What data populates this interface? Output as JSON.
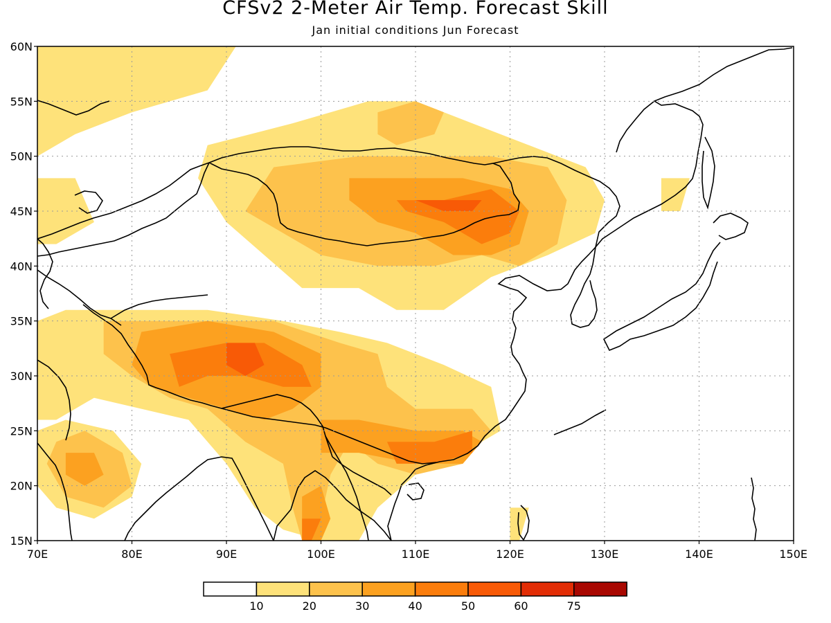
{
  "title": "CFSv2 2-Meter Air Temp. Forecast Skill",
  "subtitle": "Jan initial conditions  Jun Forecast",
  "axes": {
    "lat_labels": [
      "15N",
      "20N",
      "25N",
      "30N",
      "35N",
      "40N",
      "45N",
      "50N",
      "55N",
      "60N"
    ],
    "lon_labels": [
      "70E",
      "80E",
      "90E",
      "100E",
      "110E",
      "120E",
      "130E",
      "140E",
      "150E"
    ],
    "lat_values": [
      15,
      20,
      25,
      30,
      35,
      40,
      45,
      50,
      55,
      60
    ],
    "lon_values": [
      70,
      80,
      90,
      100,
      110,
      120,
      130,
      140,
      150
    ],
    "lat_range": [
      15,
      60
    ],
    "lon_range": [
      70,
      150
    ],
    "grid": "dotted"
  },
  "legend": {
    "labels": [
      "10",
      "20",
      "30",
      "40",
      "50",
      "60",
      "75"
    ],
    "colors": [
      "#ffffff",
      "#fee27a",
      "#fdc24c",
      "#fca120",
      "#fb7d0c",
      "#f85a06",
      "#e22d05",
      "#a90802"
    ]
  },
  "chart_data": {
    "type": "heatmap",
    "title": "CFSv2 2-Meter Air Temp. Forecast Skill",
    "subtitle": "Jan initial conditions  Jun Forecast",
    "x_range": [
      70,
      150
    ],
    "y_range": [
      15,
      60
    ],
    "levels": [
      10,
      20,
      30,
      40,
      50,
      60,
      75
    ],
    "regions": [
      {
        "level": 10,
        "pts": [
          [
            70,
            60
          ],
          [
            91,
            60
          ],
          [
            88,
            56
          ],
          [
            80,
            54
          ],
          [
            74,
            52
          ],
          [
            70,
            50
          ]
        ]
      },
      {
        "level": 10,
        "pts": [
          [
            70,
            48
          ],
          [
            74,
            48
          ],
          [
            76,
            44
          ],
          [
            72,
            42
          ],
          [
            70,
            42
          ]
        ]
      },
      {
        "level": 10,
        "pts": [
          [
            88,
            51
          ],
          [
            97,
            53
          ],
          [
            105,
            55
          ],
          [
            110,
            55
          ],
          [
            116,
            53
          ],
          [
            122,
            51
          ],
          [
            128,
            49
          ],
          [
            130,
            46
          ],
          [
            129,
            43
          ],
          [
            124,
            41
          ],
          [
            118,
            39
          ],
          [
            113,
            36
          ],
          [
            108,
            36
          ],
          [
            104,
            38
          ],
          [
            98,
            38
          ],
          [
            94,
            41
          ],
          [
            90,
            44
          ],
          [
            87,
            48
          ]
        ]
      },
      {
        "level": 10,
        "pts": [
          [
            70,
            35
          ],
          [
            73,
            36
          ],
          [
            80,
            36
          ],
          [
            88,
            36
          ],
          [
            96,
            35
          ],
          [
            102,
            34
          ],
          [
            107,
            33
          ],
          [
            113,
            31
          ],
          [
            118,
            29
          ],
          [
            119,
            25
          ],
          [
            115,
            23
          ],
          [
            110,
            21
          ],
          [
            106,
            18
          ],
          [
            104,
            15
          ],
          [
            100,
            15
          ],
          [
            96,
            16
          ],
          [
            93,
            18
          ],
          [
            90,
            22
          ],
          [
            86,
            26
          ],
          [
            81,
            27
          ],
          [
            76,
            28
          ],
          [
            72,
            26
          ],
          [
            70,
            26
          ]
        ]
      },
      {
        "level": 10,
        "pts": [
          [
            70,
            25
          ],
          [
            73,
            26
          ],
          [
            78,
            25
          ],
          [
            81,
            22
          ],
          [
            80,
            19
          ],
          [
            76,
            17
          ],
          [
            72,
            18
          ],
          [
            70,
            20
          ]
        ]
      },
      {
        "level": 10,
        "pts": [
          [
            136,
            48
          ],
          [
            139,
            48
          ],
          [
            138,
            45
          ],
          [
            136,
            45
          ]
        ]
      },
      {
        "level": 10,
        "pts": [
          [
            120,
            18
          ],
          [
            122,
            18
          ],
          [
            121,
            15
          ],
          [
            120,
            15
          ]
        ]
      },
      {
        "level": 20,
        "pts": [
          [
            95,
            49
          ],
          [
            104,
            50
          ],
          [
            112,
            50
          ],
          [
            118,
            50
          ],
          [
            124,
            49
          ],
          [
            126,
            46
          ],
          [
            125,
            42
          ],
          [
            121,
            40
          ],
          [
            117,
            41
          ],
          [
            112,
            40
          ],
          [
            106,
            40
          ],
          [
            100,
            41
          ],
          [
            96,
            43
          ],
          [
            92,
            45
          ]
        ]
      },
      {
        "level": 20,
        "pts": [
          [
            106,
            54
          ],
          [
            110,
            55
          ],
          [
            113,
            54
          ],
          [
            112,
            52
          ],
          [
            108,
            51
          ],
          [
            106,
            52
          ]
        ]
      },
      {
        "level": 20,
        "pts": [
          [
            77,
            35
          ],
          [
            82,
            35
          ],
          [
            88,
            35
          ],
          [
            95,
            35
          ],
          [
            102,
            33
          ],
          [
            106,
            32
          ],
          [
            107,
            29
          ],
          [
            110,
            27
          ],
          [
            116,
            27
          ],
          [
            118,
            25
          ],
          [
            115,
            22
          ],
          [
            110,
            21
          ],
          [
            106,
            22
          ],
          [
            103,
            24
          ],
          [
            101,
            21
          ],
          [
            100,
            17
          ],
          [
            98,
            15
          ],
          [
            97,
            18
          ],
          [
            96,
            22
          ],
          [
            92,
            24
          ],
          [
            88,
            27
          ],
          [
            84,
            28
          ],
          [
            80,
            30
          ],
          [
            77,
            32
          ]
        ]
      },
      {
        "level": 20,
        "pts": [
          [
            72,
            24
          ],
          [
            75,
            25
          ],
          [
            79,
            23
          ],
          [
            80,
            20
          ],
          [
            77,
            18
          ],
          [
            73,
            19
          ],
          [
            71,
            22
          ]
        ]
      },
      {
        "level": 30,
        "pts": [
          [
            103,
            48
          ],
          [
            110,
            48
          ],
          [
            115,
            48
          ],
          [
            120,
            47
          ],
          [
            122,
            45
          ],
          [
            121,
            42
          ],
          [
            118,
            41
          ],
          [
            114,
            41
          ],
          [
            110,
            43
          ],
          [
            106,
            44
          ],
          [
            103,
            46
          ]
        ]
      },
      {
        "level": 30,
        "pts": [
          [
            81,
            34
          ],
          [
            88,
            35
          ],
          [
            95,
            34
          ],
          [
            100,
            32
          ],
          [
            100,
            29
          ],
          [
            97,
            27
          ],
          [
            94,
            26
          ],
          [
            90,
            27
          ],
          [
            86,
            28
          ],
          [
            82,
            29
          ],
          [
            80,
            31
          ]
        ]
      },
      {
        "level": 30,
        "pts": [
          [
            100,
            26
          ],
          [
            104,
            26
          ],
          [
            110,
            25
          ],
          [
            115,
            25
          ],
          [
            117,
            24
          ],
          [
            115,
            22
          ],
          [
            110,
            22
          ],
          [
            104,
            23
          ],
          [
            100,
            23
          ]
        ]
      },
      {
        "level": 30,
        "pts": [
          [
            98,
            19
          ],
          [
            100,
            20
          ],
          [
            101,
            17
          ],
          [
            100,
            15
          ],
          [
            98,
            15
          ]
        ]
      },
      {
        "level": 30,
        "pts": [
          [
            73,
            23
          ],
          [
            76,
            23
          ],
          [
            77,
            21
          ],
          [
            75,
            20
          ],
          [
            73,
            21
          ]
        ]
      },
      {
        "level": 40,
        "pts": [
          [
            108,
            46
          ],
          [
            113,
            46
          ],
          [
            118,
            47
          ],
          [
            121,
            45
          ],
          [
            120,
            43
          ],
          [
            117,
            42
          ],
          [
            113,
            44
          ],
          [
            109,
            45
          ]
        ]
      },
      {
        "level": 40,
        "pts": [
          [
            84,
            32
          ],
          [
            90,
            33
          ],
          [
            94,
            33
          ],
          [
            98,
            31
          ],
          [
            99,
            29
          ],
          [
            96,
            29
          ],
          [
            92,
            30
          ],
          [
            88,
            30
          ],
          [
            85,
            29
          ]
        ]
      },
      {
        "level": 40,
        "pts": [
          [
            107,
            24
          ],
          [
            112,
            24
          ],
          [
            116,
            25
          ],
          [
            116,
            23
          ],
          [
            112,
            22
          ],
          [
            108,
            22
          ]
        ]
      },
      {
        "level": 40,
        "pts": [
          [
            98,
            17
          ],
          [
            100,
            17
          ],
          [
            99,
            15
          ],
          [
            98,
            15
          ]
        ]
      },
      {
        "level": 50,
        "pts": [
          [
            110,
            46
          ],
          [
            114,
            46
          ],
          [
            117,
            46
          ],
          [
            116,
            45
          ],
          [
            113,
            45
          ]
        ]
      },
      {
        "level": 50,
        "pts": [
          [
            90,
            33
          ],
          [
            93,
            33
          ],
          [
            94,
            31
          ],
          [
            92,
            30
          ],
          [
            90,
            31
          ]
        ]
      }
    ]
  }
}
